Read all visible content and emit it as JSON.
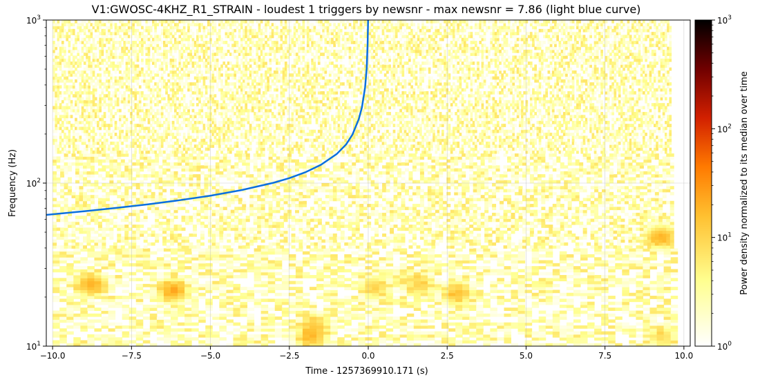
{
  "chart_data": {
    "type": "heatmap",
    "title": "V1:GWOSC-4KHZ_R1_STRAIN - loudest 1 triggers by newsnr - max newsnr = 7.86 (light blue curve)",
    "xlabel": "Time - 1257369910.171 (s)",
    "ylabel": "Frequency (Hz)",
    "colorbar_label": "Power density normalized to its median over time",
    "xlim": [
      -10.2,
      10.2
    ],
    "ylim": [
      10,
      1000
    ],
    "yscale": "log",
    "data_time_range": [
      -10.0,
      9.6
    ],
    "x_ticks": [
      -10.0,
      -7.5,
      -5.0,
      -2.5,
      0.0,
      2.5,
      5.0,
      7.5,
      10.0
    ],
    "x_tick_labels": [
      "−10.0",
      "−7.5",
      "−5.0",
      "−2.5",
      "0.0",
      "2.5",
      "5.0",
      "7.5",
      "10.0"
    ],
    "y_ticks": [
      10,
      100,
      1000
    ],
    "y_tick_labels": [
      [
        "10",
        "1"
      ],
      [
        "10",
        "2"
      ],
      [
        "10",
        "3"
      ]
    ],
    "colorbar": {
      "scale": "log",
      "range": [
        1,
        1000
      ],
      "ticks": [
        1,
        10,
        100,
        1000
      ],
      "tick_labels": [
        [
          "10",
          "0"
        ],
        [
          "10",
          "1"
        ],
        [
          "10",
          "2"
        ],
        [
          "10",
          "3"
        ]
      ],
      "colormap": "afmhot_r",
      "colors": [
        "#ffffff",
        "#ffff80",
        "#ffb000",
        "#ff6000",
        "#c00000",
        "#600000",
        "#000000"
      ]
    },
    "grid": true,
    "hot_spots": [
      {
        "t": -8.9,
        "f": 24,
        "level": 18
      },
      {
        "t": -6.3,
        "f": 22,
        "level": 20
      },
      {
        "t": -1.9,
        "f": 11.5,
        "level": 14
      },
      {
        "t": -1.8,
        "f": 13.5,
        "level": 9
      },
      {
        "t": 0.1,
        "f": 23,
        "level": 9
      },
      {
        "t": 1.5,
        "f": 24,
        "level": 9
      },
      {
        "t": 2.7,
        "f": 21,
        "level": 12
      },
      {
        "t": 9.2,
        "f": 47,
        "level": 16
      },
      {
        "t": 9.2,
        "f": 11.5,
        "level": 7
      }
    ],
    "series": [
      {
        "name": "max newsnr = 7.86",
        "color": "#0a6fe0",
        "t": [
          -10.2,
          -9,
          -8,
          -7,
          -6,
          -5,
          -4,
          -3,
          -2.5,
          -2,
          -1.5,
          -1,
          -0.7,
          -0.5,
          -0.3,
          -0.2,
          -0.1,
          -0.05,
          -0.02,
          -0.005,
          0.0
        ],
        "f": [
          63.8,
          67.2,
          70.4,
          74.0,
          78.4,
          83.7,
          90.7,
          100.5,
          107.3,
          116.4,
          129.5,
          150.7,
          172.8,
          198.4,
          246.8,
          291.5,
          386.6,
          505.4,
          714.0,
          1000.0,
          1000.0
        ]
      }
    ]
  }
}
